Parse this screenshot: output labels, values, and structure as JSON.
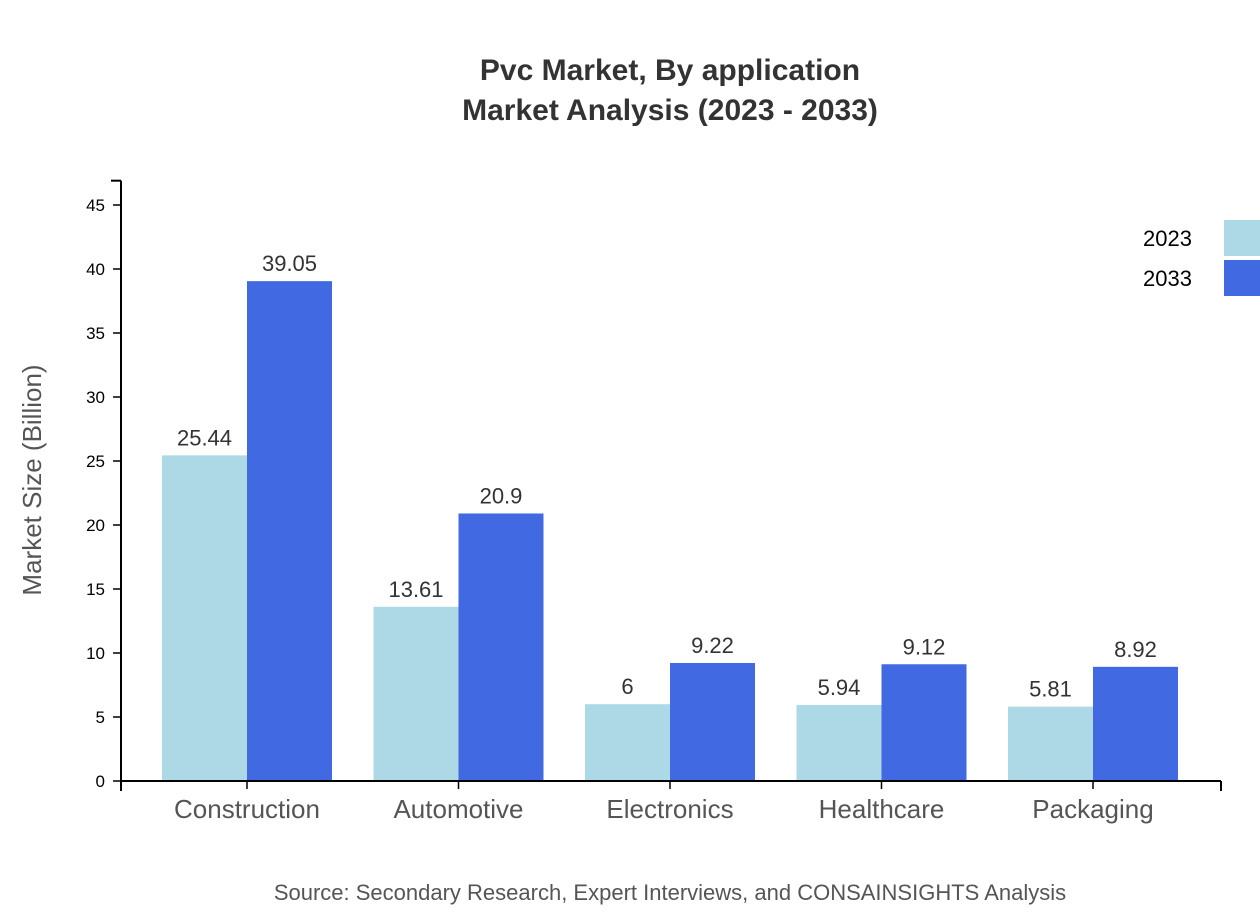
{
  "chart_data": {
    "type": "bar",
    "title": "Pvc Market, By application",
    "subtitle": "Market Analysis (2023 - 2033)",
    "xlabel": "",
    "ylabel": "Market Size (Billion)",
    "ylim": [
      0,
      46.9
    ],
    "yticks": [
      0,
      5,
      10,
      15,
      20,
      25,
      30,
      35,
      40,
      45
    ],
    "grid": false,
    "legend_position": "top-right",
    "categories": [
      "Construction",
      "Automotive",
      "Electronics",
      "Healthcare",
      "Packaging"
    ],
    "series": [
      {
        "name": "2023",
        "color": "#add8e6",
        "values": [
          25.44,
          13.61,
          6,
          5.94,
          5.81
        ]
      },
      {
        "name": "2033",
        "color": "#4169e1",
        "values": [
          39.05,
          20.9,
          9.22,
          9.12,
          8.92
        ]
      }
    ],
    "source": "Source: Secondary Research, Expert Interviews, and CONSAINSIGHTS Analysis"
  }
}
